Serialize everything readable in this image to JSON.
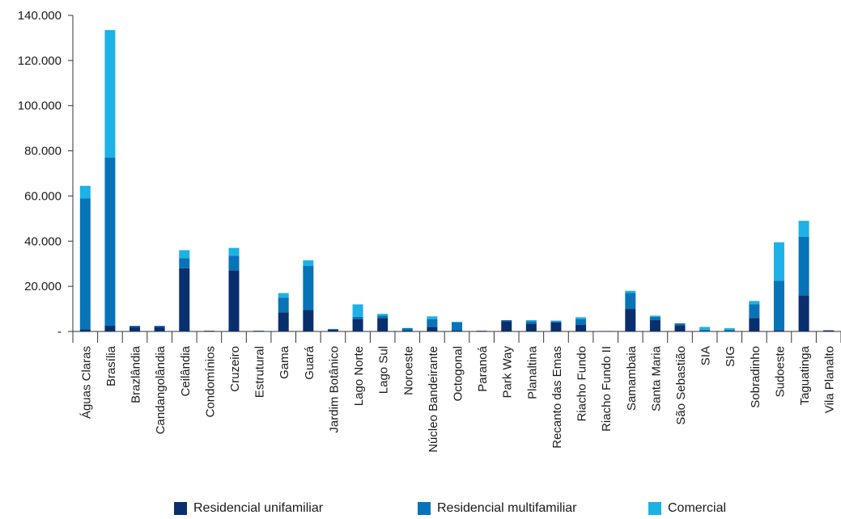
{
  "chart_data": {
    "type": "bar",
    "stacked": true,
    "categories": [
      "Águas Claras",
      "Brasília",
      "Brazlândia",
      "Candangolândia",
      "Ceilândia",
      "Condomínios",
      "Cruzeiro",
      "Estrutural",
      "Gama",
      "Guará",
      "Jardim Botânico",
      "Lago Norte",
      "Lago Sul",
      "Noroeste",
      "Núcleo Bandeirante",
      "Octogonal",
      "Paranoá",
      "Park Way",
      "Planaltina",
      "Recanto das Emas",
      "Riacho Fundo",
      "Riacho Fundo II",
      "Samambaia",
      "Santa Maria",
      "São Sebastião",
      "SIA",
      "SIG",
      "Sobradinho",
      "Sudoeste",
      "Taguatinga",
      "Vila Planalto"
    ],
    "series": [
      {
        "name": "Residencial unifamiliar",
        "color": "#0a2f6e",
        "values": [
          1000,
          2500,
          2000,
          2000,
          28000,
          300,
          27000,
          300,
          8500,
          9500,
          800,
          5500,
          6000,
          500,
          2000,
          500,
          300,
          4500,
          3500,
          4000,
          3000,
          200,
          10000,
          5000,
          2800,
          200,
          200,
          6000,
          500,
          16000,
          500
        ]
      },
      {
        "name": "Residencial multifamiliar",
        "color": "#0874b8",
        "values": [
          58000,
          74500,
          500,
          500,
          4500,
          0,
          6500,
          0,
          6500,
          19500,
          300,
          1000,
          1000,
          1000,
          3500,
          3500,
          0,
          500,
          1000,
          500,
          2500,
          0,
          7000,
          1500,
          800,
          600,
          600,
          6000,
          22000,
          26000,
          0
        ]
      },
      {
        "name": "Comercial",
        "color": "#1eb1e6",
        "values": [
          5500,
          56500,
          0,
          0,
          3500,
          0,
          3500,
          0,
          2000,
          2500,
          0,
          5500,
          800,
          0,
          1200,
          300,
          0,
          0,
          500,
          300,
          800,
          0,
          1000,
          500,
          0,
          1200,
          700,
          1500,
          17000,
          7000,
          0
        ]
      }
    ],
    "yticks": [
      "140.000",
      "120.000",
      "100.000",
      "80.000",
      "60.000",
      "40.000",
      "20.000",
      "-"
    ],
    "ylim": [
      0,
      140000
    ],
    "grid": false,
    "legend_position": "bottom"
  }
}
